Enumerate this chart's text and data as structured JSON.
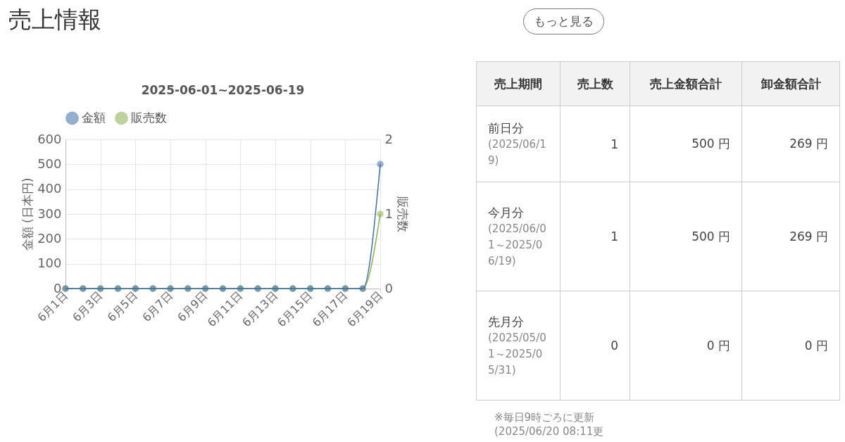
{
  "chart_data": [
    {
      "type": "other",
      "title": "売上情報",
      "annotations": [
        "もっと見る"
      ]
    },
    {
      "type": "line",
      "title": "2025-06-01~2025-06-19",
      "categories": [
        "6月1日",
        null,
        "6月3日",
        null,
        "6月5日",
        null,
        "6月7日",
        null,
        "6月9日",
        null,
        "6月11日",
        null,
        "6月13日",
        null,
        "6月15日",
        null,
        "6月17日",
        null,
        "6月19日"
      ],
      "series": [
        {
          "name": "金額",
          "color": "#3f6fa8",
          "values": [
            0,
            0,
            0,
            0,
            0,
            0,
            0,
            0,
            0,
            0,
            0,
            0,
            0,
            0,
            0,
            0,
            0,
            0,
            500
          ]
        },
        {
          "name": "販売数",
          "color": "#8aae4b",
          "axis": "y2",
          "values": [
            0,
            0,
            0,
            0,
            0,
            0,
            0,
            0,
            0,
            0,
            0,
            0,
            0,
            0,
            0,
            0,
            0,
            0,
            1
          ]
        }
      ],
      "ylabel": "金額 (日本円)",
      "y2label": "販売数",
      "ylim": [
        0,
        600
      ],
      "yticks": [
        0,
        100,
        200,
        300,
        400,
        500,
        600
      ],
      "y2lim": [
        0,
        2
      ],
      "y2ticks": [
        0,
        1,
        2
      ],
      "grid": true,
      "legend": "top",
      "marker": "circle"
    },
    {
      "type": "other",
      "annotations": [
        "売上期間",
        "売上数",
        "売上金額合計",
        "卸金額合計",
        "前日分",
        "(2025/06/19)",
        "1",
        "500 円",
        "269 円",
        "今月分",
        "(2025/06/01～2025/06/19)",
        "1",
        "500 円",
        "269 円",
        "先月分",
        "(2025/05/01～2025/05/31)",
        "0",
        "0 円",
        "0 円",
        "※毎日9時ごろに更新",
        "(2025/06/20 08:11更"
      ]
    }
  ]
}
